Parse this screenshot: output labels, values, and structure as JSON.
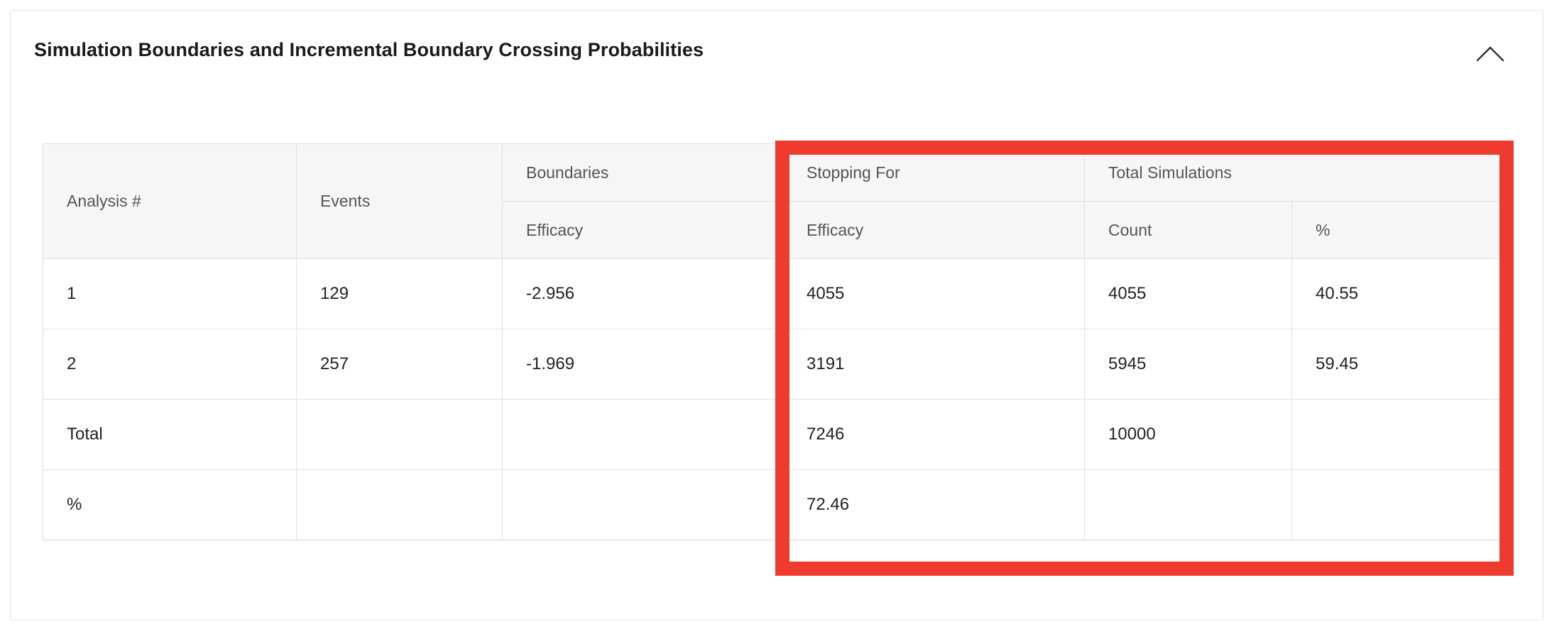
{
  "panel": {
    "title": "Simulation Boundaries and Incremental Boundary Crossing Probabilities",
    "collapse_icon": "chevron-up-icon"
  },
  "table": {
    "headers": {
      "analysis": "Analysis #",
      "events": "Events",
      "boundaries": "Boundaries",
      "boundaries_efficacy": "Efficacy",
      "stopping_for": "Stopping For",
      "stopping_efficacy": "Efficacy",
      "total_simulations": "Total Simulations",
      "count": "Count",
      "percent": "%"
    },
    "rows": [
      {
        "analysis": "1",
        "events": "129",
        "boundary_efficacy": "-2.956",
        "stopping_efficacy": "4055",
        "count": "4055",
        "percent": "40.55"
      },
      {
        "analysis": "2",
        "events": "257",
        "boundary_efficacy": "-1.969",
        "stopping_efficacy": "3191",
        "count": "5945",
        "percent": "59.45"
      },
      {
        "analysis": "Total",
        "events": "",
        "boundary_efficacy": "",
        "stopping_efficacy": "7246",
        "count": "10000",
        "percent": ""
      },
      {
        "analysis": "%",
        "events": "",
        "boundary_efficacy": "",
        "stopping_efficacy": "72.46",
        "count": "",
        "percent": ""
      }
    ]
  },
  "colors": {
    "highlight": "#ef3a2f",
    "header_bg": "#f6f6f6",
    "border": "#e0e0e0"
  }
}
